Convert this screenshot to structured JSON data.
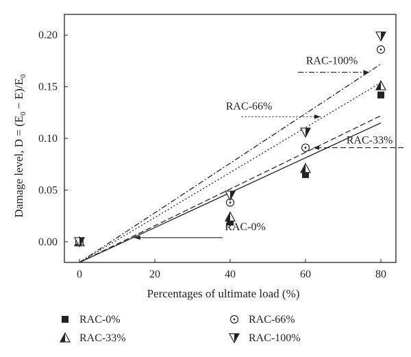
{
  "chart_data": {
    "type": "scatter",
    "xlabel": "Percentages of ultimate load (%)",
    "ylabel": "Damage level, D = (E",
    "ylabel_sub0": "0",
    "ylabel_mid": " − E)/E",
    "ylabel_sub1": "0",
    "xlim": [
      -4,
      84
    ],
    "ylim": [
      -0.02,
      0.22
    ],
    "x_ticks": [
      0,
      20,
      40,
      60,
      80
    ],
    "y_ticks": [
      0.0,
      0.05,
      0.1,
      0.15,
      0.2
    ],
    "x_tick_labels": [
      "0",
      "20",
      "40",
      "60",
      "80"
    ],
    "y_tick_labels": [
      "0.00",
      "0.05",
      "0.10",
      "0.15",
      "0.20"
    ],
    "grid": false,
    "legend_position": "bottom",
    "series": [
      {
        "name": "RAC-0%",
        "marker": "filled-square",
        "points": [
          [
            0,
            0.0
          ],
          [
            40,
            0.019
          ],
          [
            60,
            0.065
          ],
          [
            80,
            0.142
          ]
        ],
        "fit": {
          "x": [
            0,
            80
          ],
          "y": [
            -0.02,
            0.115
          ],
          "dash": "solid"
        }
      },
      {
        "name": "RAC-33%",
        "marker": "half-filled-triangle-up",
        "points": [
          [
            0,
            0.0
          ],
          [
            40,
            0.024
          ],
          [
            60,
            0.071
          ],
          [
            80,
            0.151
          ]
        ],
        "fit": {
          "x": [
            0,
            80
          ],
          "y": [
            -0.02,
            0.122
          ],
          "dash": "dashed"
        }
      },
      {
        "name": "RAC-66%",
        "marker": "circle-dot",
        "points": [
          [
            0,
            0.0
          ],
          [
            40,
            0.038
          ],
          [
            60,
            0.091
          ],
          [
            80,
            0.186
          ]
        ],
        "fit": {
          "x": [
            0,
            80
          ],
          "y": [
            -0.02,
            0.154
          ],
          "dash": "dotted"
        }
      },
      {
        "name": "RAC-100%",
        "marker": "half-filled-triangle-down",
        "points": [
          [
            0,
            0.0
          ],
          [
            40,
            0.045
          ],
          [
            60,
            0.106
          ],
          [
            80,
            0.199
          ]
        ],
        "fit": {
          "x": [
            0,
            80
          ],
          "y": [
            -0.02,
            0.172
          ],
          "dash": "dashdot"
        }
      }
    ],
    "annotations": [
      {
        "text": "RAC-0%",
        "series": "RAC-0%",
        "text_at": [
          44,
          0.011
        ],
        "line_from": [
          38,
          0.004
        ],
        "arrow_to": [
          14.5,
          0.004
        ],
        "dash": "solid"
      },
      {
        "text": "RAC-33%",
        "series": "RAC-33%",
        "text_at": [
          77,
          0.095
        ],
        "line_from": [
          86,
          0.091
        ],
        "arrow_to": [
          62,
          0.091
        ],
        "dash": "dashed"
      },
      {
        "text": "RAC-66%",
        "series": "RAC-66%",
        "text_at": [
          45,
          0.128
        ],
        "line_from": [
          43,
          0.121
        ],
        "arrow_to": [
          64,
          0.121
        ],
        "dash": "dotted"
      },
      {
        "text": "RAC-100%",
        "series": "RAC-100%",
        "text_at": [
          67,
          0.172
        ],
        "line_from": [
          58,
          0.164
        ],
        "arrow_to": [
          77,
          0.164
        ],
        "dash": "dashdot"
      }
    ]
  }
}
